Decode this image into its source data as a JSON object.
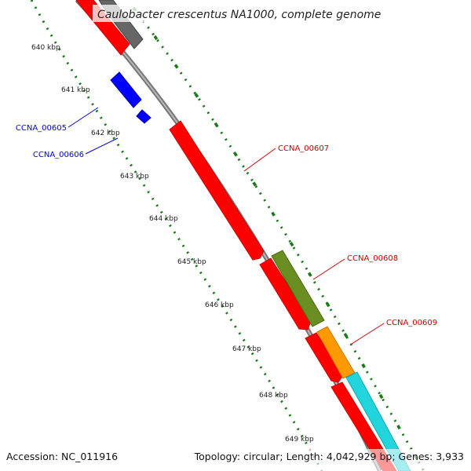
{
  "title": "Caulobacter crescentus NA1000, complete genome",
  "footer": {
    "accession": "Accession: NC_011916",
    "summary": "Topology: circular; Length: 4,042,929 bp; Genes: 3,933"
  },
  "kbp_labels": [
    "640 kbp",
    "641 kbp",
    "642 kbp",
    "643 kbp",
    "644 kbp",
    "645 kbp",
    "646 kbp",
    "647 kbp",
    "648 kbp",
    "649 kbp"
  ],
  "genes": [
    {
      "id": "CCNA_00605",
      "strand": "reverse",
      "color": "#0000dd"
    },
    {
      "id": "CCNA_00606",
      "strand": "reverse",
      "color": "#0000dd"
    },
    {
      "id": "CCNA_00607",
      "strand": "forward",
      "color": "#cc0000"
    },
    {
      "id": "CCNA_00608",
      "strand": "forward",
      "color": "#cc0000"
    },
    {
      "id": "CCNA_00609",
      "strand": "forward",
      "color": "#cc0000"
    }
  ],
  "colors": {
    "cds": "#ff0000",
    "reverse_cds": "#0000ff",
    "backbone": "#808080",
    "tick": "#1a7a1a",
    "track_olive": "#6b8e23",
    "track_orange": "#ff9900",
    "track_cyan": "#22d4dc",
    "track_gray": "#666666"
  }
}
